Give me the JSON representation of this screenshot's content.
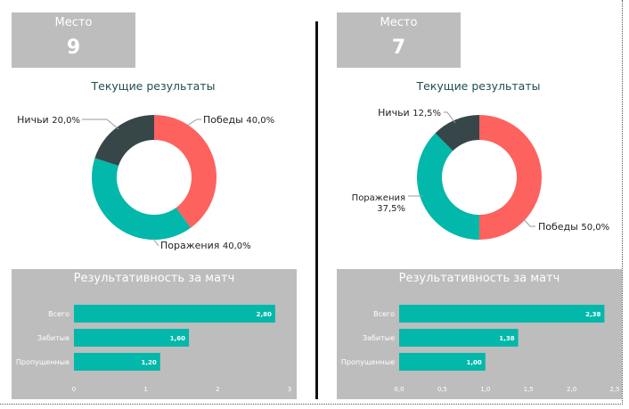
{
  "chart_data": [
    {
      "type": "donut",
      "place_label": "Место",
      "place_value": "9",
      "title": "Текущие результаты",
      "slices": [
        {
          "name": "Победы",
          "value": 40.0,
          "label": "Победы 40,0%",
          "color": "#fd625e"
        },
        {
          "name": "Поражения",
          "value": 40.0,
          "label": "Поражения 40,0%",
          "color": "#01b8aa"
        },
        {
          "name": "Ничьи",
          "value": 20.0,
          "label": "Ничьи 20,0%",
          "color": "#374649"
        }
      ]
    },
    {
      "type": "bar",
      "orientation": "horizontal",
      "title": "Результативность за матч",
      "categories": [
        "Всего",
        "Забитые",
        "Пропущенные"
      ],
      "values": [
        2.8,
        1.6,
        1.2
      ],
      "value_labels": [
        "2,80",
        "1,60",
        "1,20"
      ],
      "xlim": [
        0,
        3
      ],
      "ticks": [
        0,
        1,
        2,
        3
      ],
      "tick_labels": [
        "0",
        "1",
        "2",
        "3"
      ],
      "color": "#01b8aa"
    },
    {
      "type": "donut",
      "place_label": "Место",
      "place_value": "7",
      "title": "Текущие результаты",
      "slices": [
        {
          "name": "Победы",
          "value": 50.0,
          "label": "Победы 50,0%",
          "color": "#fd625e"
        },
        {
          "name": "Поражения",
          "value": 37.5,
          "label": "Поражения 37,5%",
          "color": "#01b8aa"
        },
        {
          "name": "Ничьи",
          "value": 12.5,
          "label": "Ничьи 12,5%",
          "color": "#374649"
        }
      ]
    },
    {
      "type": "bar",
      "orientation": "horizontal",
      "title": "Результативность за матч",
      "categories": [
        "Всего",
        "Забитые",
        "Пропущенные"
      ],
      "values": [
        2.38,
        1.38,
        1.0
      ],
      "value_labels": [
        "2,38",
        "1,38",
        "1,00"
      ],
      "xlim": [
        0,
        2.5
      ],
      "ticks": [
        0,
        0.5,
        1.0,
        1.5,
        2.0,
        2.5
      ],
      "tick_labels": [
        "0,0",
        "0,5",
        "1,0",
        "1,5",
        "2,0",
        "2,5"
      ],
      "color": "#01b8aa"
    }
  ]
}
